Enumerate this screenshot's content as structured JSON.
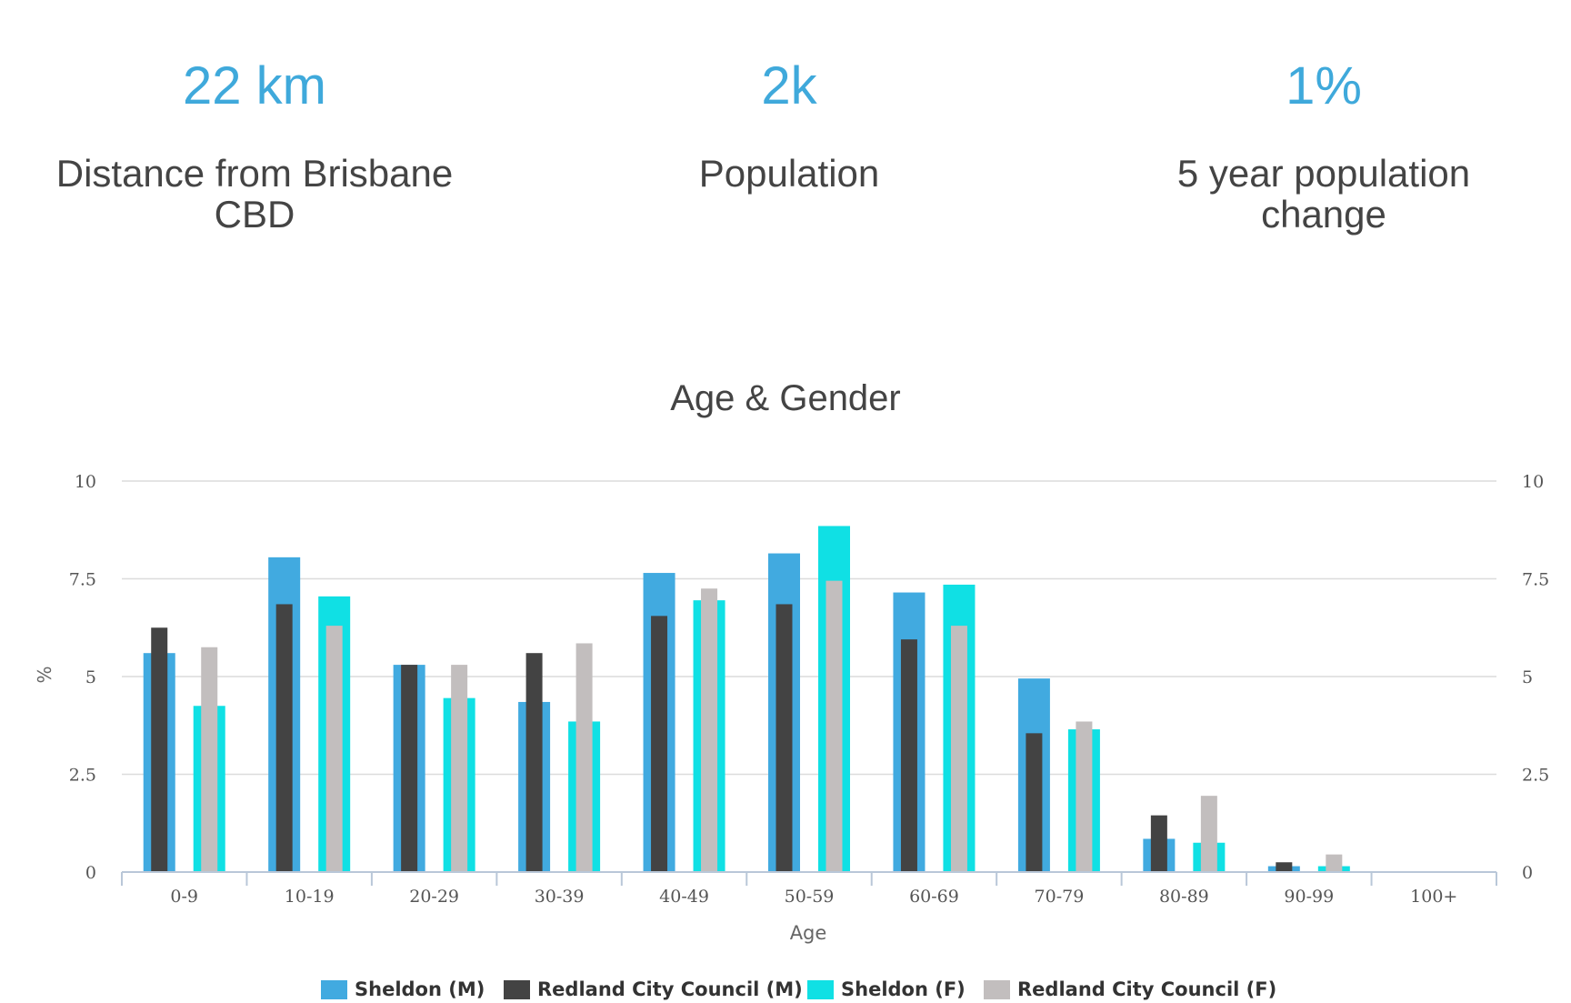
{
  "stats": [
    {
      "value": "22 km",
      "label": "Distance from Brisbane CBD"
    },
    {
      "value": "2k",
      "label": "Population"
    },
    {
      "value": "1%",
      "label": "5 year population change"
    }
  ],
  "chart_data": {
    "type": "bar",
    "title": "Age & Gender",
    "xlabel": "Age",
    "ylabel": "%",
    "ylim": [
      0,
      10
    ],
    "yticks": [
      "0",
      "2.5",
      "5",
      "7.5",
      "10"
    ],
    "yticks_right": [
      "0",
      "2.5",
      "5",
      "7.5",
      "10"
    ],
    "categories": [
      "0-9",
      "10-19",
      "20-29",
      "30-39",
      "40-49",
      "50-59",
      "60-69",
      "70-79",
      "80-89",
      "90-99",
      "100+"
    ],
    "series": [
      {
        "name": "Sheldon (M)",
        "color": "#41aae0",
        "group": "male",
        "layer": "back",
        "values": [
          5.6,
          8.05,
          5.3,
          4.35,
          7.65,
          8.15,
          7.15,
          4.95,
          0.85,
          0.15,
          0
        ]
      },
      {
        "name": "Redland City Council (M)",
        "color": "#434343",
        "group": "male",
        "layer": "front",
        "values": [
          6.25,
          6.85,
          5.3,
          5.6,
          6.55,
          6.85,
          5.95,
          3.55,
          1.45,
          0.25,
          0
        ]
      },
      {
        "name": "Sheldon (F)",
        "color": "#10e0e4",
        "group": "female",
        "layer": "back",
        "values": [
          4.25,
          7.05,
          4.45,
          3.85,
          6.95,
          8.85,
          7.35,
          3.65,
          0.75,
          0.15,
          0
        ]
      },
      {
        "name": "Redland City Council (F)",
        "color": "#c2bebe",
        "group": "female",
        "layer": "front",
        "values": [
          5.75,
          6.3,
          5.3,
          5.85,
          7.25,
          7.45,
          6.3,
          3.85,
          1.95,
          0.45,
          0
        ]
      }
    ],
    "legend_position": "bottom"
  }
}
